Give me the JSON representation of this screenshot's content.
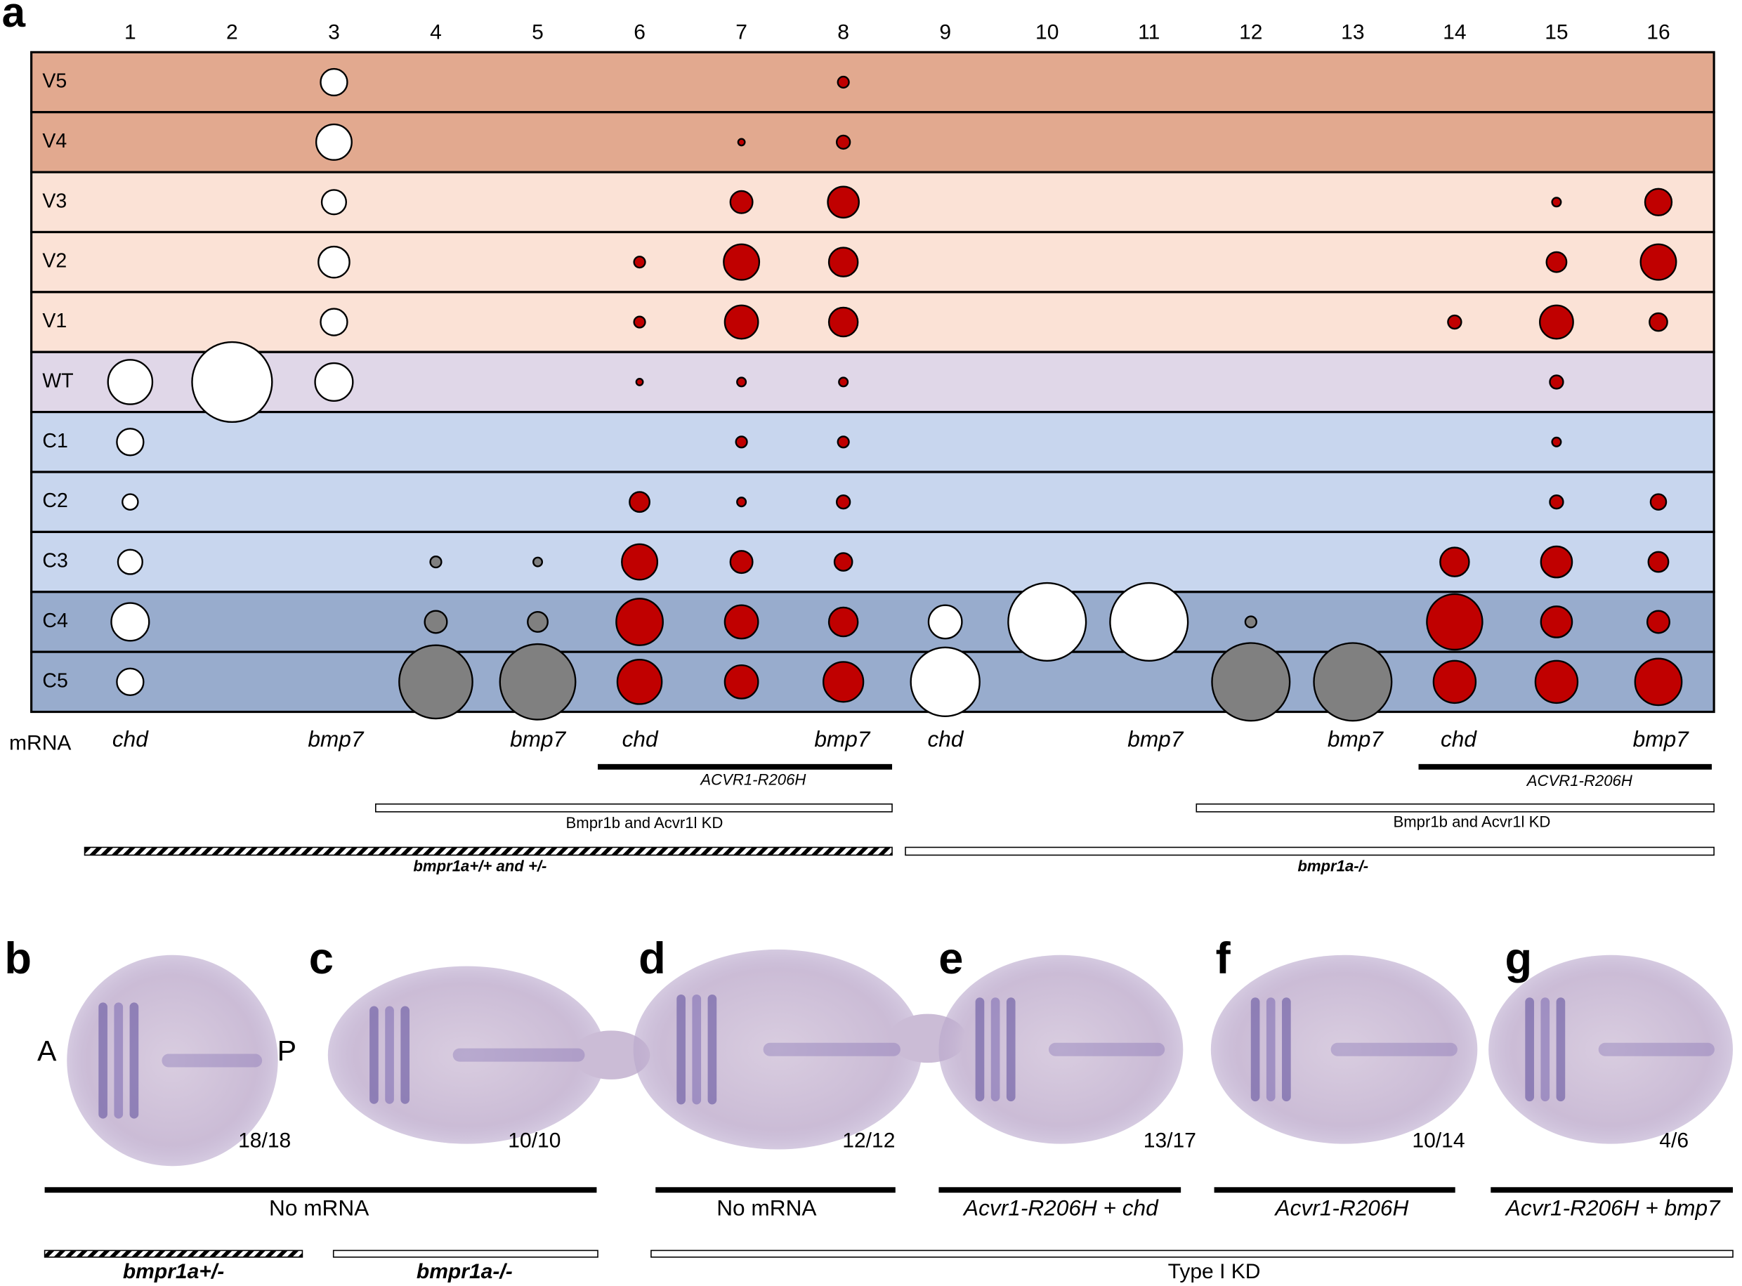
{
  "panel_a": {
    "label": "a",
    "columns": [
      "1",
      "2",
      "3",
      "4",
      "5",
      "6",
      "7",
      "8",
      "9",
      "10",
      "11",
      "12",
      "13",
      "14",
      "15",
      "16"
    ],
    "rows": [
      "V5",
      "V4",
      "V3",
      "V2",
      "V1",
      "WT",
      "C1",
      "C2",
      "C3",
      "C4",
      "C5"
    ],
    "mrna_label": "mRNA",
    "mrna": [
      "chd",
      "bmp7",
      "bmp7",
      "chd",
      "bmp7",
      "chd",
      "bmp7",
      "bmp7",
      "chd",
      "bmp7"
    ],
    "bars": [
      "ACVR1-R206H",
      "ACVR1-R206H",
      "Bmpr1b and Acvr1l KD",
      "Bmpr1b and Acvr1l KD",
      "bmpr1a+/+ and +/-",
      "bmpr1a-/-"
    ]
  },
  "panels": [
    {
      "label": "b",
      "count": "18/18"
    },
    {
      "label": "c",
      "count": "10/10"
    },
    {
      "label": "d",
      "count": "12/12"
    },
    {
      "label": "e",
      "count": "13/17"
    },
    {
      "label": "f",
      "count": "10/14"
    },
    {
      "label": "g",
      "count": "4/6"
    }
  ],
  "axis_labels": [
    "A",
    "P"
  ],
  "captions": [
    "No mRNA",
    "No mRNA",
    "Acvr1-R206H + chd",
    "Acvr1-R206H",
    "Acvr1-R206H + bmp7"
  ],
  "genotypes": [
    "bmpr1a+/-",
    "bmpr1a-/-",
    "Type I KD"
  ]
}
